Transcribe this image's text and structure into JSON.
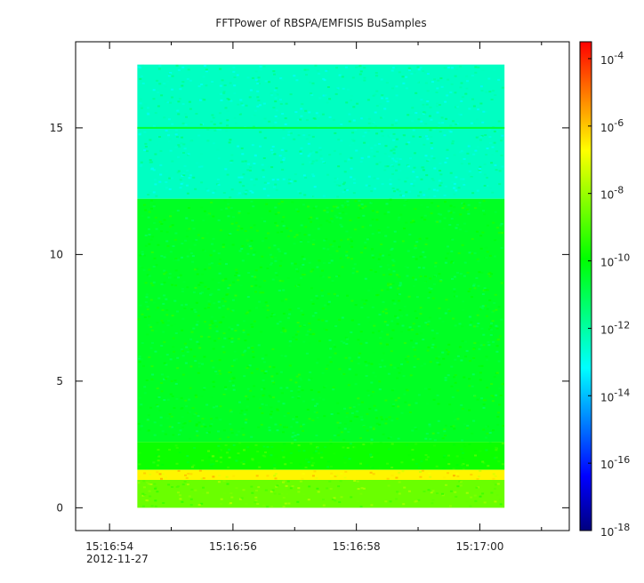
{
  "chart_data": {
    "type": "heatmap",
    "title": "FFTPower of RBSPA/EMFISIS  BuSamples",
    "xlabel": "",
    "ylabel": "",
    "x_date_label": "2012-11-27",
    "x_tick_labels": [
      "15:16:54",
      "15:16:56",
      "15:16:58",
      "15:17:00"
    ],
    "x_tick_values_s": [
      0,
      2,
      4,
      6
    ],
    "x_minor_tick_values_s": [
      1,
      3,
      5,
      7
    ],
    "xlim_s": [
      -0.55,
      7.45
    ],
    "data_x_range_s": [
      0.45,
      6.4
    ],
    "y_tick_labels": [
      "0",
      "5",
      "10",
      "15"
    ],
    "y_tick_values": [
      0,
      5,
      10,
      15
    ],
    "ylim": [
      -0.9,
      18.4
    ],
    "data_y_range": [
      0,
      17.5
    ],
    "colorbar": {
      "scale": "log",
      "exponent_range": [
        -18,
        -3.5
      ],
      "tick_exponents": [
        -18,
        -16,
        -14,
        -12,
        -10,
        -8,
        -6,
        -4
      ],
      "tick_base": "10",
      "colors": [
        "#00007f",
        "#0000ff",
        "#0080ff",
        "#00ffff",
        "#00ff7f",
        "#00ff00",
        "#7fff00",
        "#ffff00",
        "#ff8000",
        "#ff0000"
      ]
    },
    "bands": [
      {
        "y_range": [
          12.2,
          17.5
        ],
        "log_power": -12.4
      },
      {
        "y_range": [
          2.6,
          12.2
        ],
        "log_power": -10.4
      },
      {
        "y_range": [
          1.5,
          2.6
        ],
        "log_power": -9.8
      },
      {
        "y_range": [
          1.1,
          1.5
        ],
        "log_power": -6.6
      },
      {
        "y_range": [
          0.0,
          1.1
        ],
        "log_power": -8.6
      }
    ],
    "lines": [
      {
        "y": 15.0,
        "log_power": -10.6
      }
    ],
    "legend": "none",
    "grid": false
  }
}
